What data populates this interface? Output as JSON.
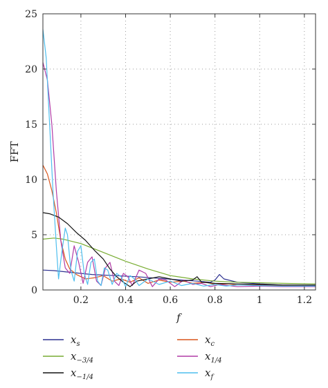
{
  "chart_data": {
    "type": "line",
    "title": "",
    "xlabel": "f",
    "ylabel": "FFT",
    "xlim": [
      0.03,
      1.25
    ],
    "ylim": [
      0,
      25
    ],
    "grid": true,
    "x_ticks": [
      0.2,
      0.4,
      0.6,
      0.8,
      1,
      1.2
    ],
    "x_tick_labels": [
      "0.2",
      "0.4",
      "0.6",
      "0.8",
      "1",
      "1.2"
    ],
    "y_ticks": [
      0,
      5,
      10,
      15,
      20,
      25
    ],
    "y_tick_labels": [
      "0",
      "5",
      "10",
      "15",
      "20",
      "25"
    ],
    "legend": {
      "placement": "bottom",
      "entries": [
        {
          "base": "x",
          "sub": "s",
          "color": "#2b2f8f"
        },
        {
          "base": "x",
          "sub": "c",
          "color": "#d9541a"
        },
        {
          "base": "x",
          "sub": "−3/4",
          "color": "#77ac30"
        },
        {
          "base": "x",
          "sub": "1/4",
          "color": "#b03aa6"
        },
        {
          "base": "x",
          "sub": "−1/4",
          "color": "#111111"
        },
        {
          "base": "x",
          "sub": "f",
          "color": "#4dbeee"
        }
      ]
    },
    "series": [
      {
        "key": "xs",
        "color": "#2b2f8f",
        "points": [
          [
            0.03,
            1.8
          ],
          [
            0.08,
            1.75
          ],
          [
            0.15,
            1.6
          ],
          [
            0.25,
            1.4
          ],
          [
            0.35,
            1.3
          ],
          [
            0.45,
            1.2
          ],
          [
            0.55,
            1.05
          ],
          [
            0.65,
            0.9
          ],
          [
            0.72,
            0.8
          ],
          [
            0.78,
            0.7
          ],
          [
            0.8,
            0.9
          ],
          [
            0.82,
            1.4
          ],
          [
            0.84,
            1.0
          ],
          [
            0.9,
            0.7
          ],
          [
            1.0,
            0.55
          ],
          [
            1.1,
            0.45
          ],
          [
            1.25,
            0.4
          ]
        ]
      },
      {
        "key": "xc",
        "color": "#d9541a",
        "points": [
          [
            0.03,
            11.3
          ],
          [
            0.05,
            10.5
          ],
          [
            0.07,
            9.0
          ],
          [
            0.09,
            7.0
          ],
          [
            0.11,
            4.5
          ],
          [
            0.13,
            2.8
          ],
          [
            0.15,
            1.9
          ],
          [
            0.18,
            1.4
          ],
          [
            0.22,
            1.0
          ],
          [
            0.26,
            1.1
          ],
          [
            0.3,
            1.3
          ],
          [
            0.34,
            0.8
          ],
          [
            0.38,
            1.0
          ],
          [
            0.42,
            0.7
          ],
          [
            0.46,
            1.1
          ],
          [
            0.5,
            0.6
          ],
          [
            0.55,
            0.9
          ],
          [
            0.6,
            0.7
          ],
          [
            0.66,
            0.8
          ],
          [
            0.7,
            0.6
          ],
          [
            0.76,
            0.7
          ],
          [
            0.8,
            0.5
          ],
          [
            0.86,
            0.55
          ],
          [
            0.9,
            0.45
          ],
          [
            1.0,
            0.45
          ],
          [
            1.1,
            0.4
          ],
          [
            1.25,
            0.35
          ]
        ]
      },
      {
        "key": "x_m34",
        "color": "#77ac30",
        "points": [
          [
            0.03,
            4.6
          ],
          [
            0.08,
            4.7
          ],
          [
            0.12,
            4.6
          ],
          [
            0.2,
            4.2
          ],
          [
            0.3,
            3.4
          ],
          [
            0.4,
            2.6
          ],
          [
            0.5,
            1.9
          ],
          [
            0.6,
            1.3
          ],
          [
            0.7,
            1.0
          ],
          [
            0.8,
            0.8
          ],
          [
            0.9,
            0.7
          ],
          [
            1.0,
            0.65
          ],
          [
            1.1,
            0.6
          ],
          [
            1.25,
            0.55
          ]
        ]
      },
      {
        "key": "x_14",
        "color": "#b03aa6",
        "points": [
          [
            0.03,
            20.6
          ],
          [
            0.05,
            19.0
          ],
          [
            0.07,
            15.0
          ],
          [
            0.09,
            9.0
          ],
          [
            0.11,
            4.5
          ],
          [
            0.13,
            2.0
          ],
          [
            0.15,
            1.5
          ],
          [
            0.17,
            4.0
          ],
          [
            0.19,
            2.5
          ],
          [
            0.21,
            0.6
          ],
          [
            0.23,
            2.5
          ],
          [
            0.25,
            3.0
          ],
          [
            0.27,
            0.8
          ],
          [
            0.29,
            0.4
          ],
          [
            0.31,
            2.0
          ],
          [
            0.33,
            2.5
          ],
          [
            0.35,
            0.8
          ],
          [
            0.37,
            0.4
          ],
          [
            0.39,
            1.5
          ],
          [
            0.41,
            1.2
          ],
          [
            0.43,
            0.4
          ],
          [
            0.46,
            1.8
          ],
          [
            0.49,
            1.5
          ],
          [
            0.52,
            0.3
          ],
          [
            0.55,
            1.0
          ],
          [
            0.58,
            0.9
          ],
          [
            0.62,
            0.3
          ],
          [
            0.66,
            0.9
          ],
          [
            0.7,
            0.5
          ],
          [
            0.74,
            0.6
          ],
          [
            0.78,
            0.3
          ],
          [
            0.82,
            0.5
          ],
          [
            0.86,
            0.4
          ],
          [
            0.9,
            0.3
          ],
          [
            1.0,
            0.35
          ],
          [
            1.1,
            0.3
          ],
          [
            1.25,
            0.3
          ]
        ]
      },
      {
        "key": "x_m14",
        "color": "#111111",
        "points": [
          [
            0.03,
            7.0
          ],
          [
            0.06,
            6.9
          ],
          [
            0.1,
            6.6
          ],
          [
            0.14,
            6.0
          ],
          [
            0.18,
            5.2
          ],
          [
            0.22,
            4.5
          ],
          [
            0.26,
            3.6
          ],
          [
            0.3,
            2.8
          ],
          [
            0.33,
            1.9
          ],
          [
            0.36,
            1.2
          ],
          [
            0.39,
            0.7
          ],
          [
            0.42,
            0.3
          ],
          [
            0.45,
            0.8
          ],
          [
            0.5,
            1.0
          ],
          [
            0.55,
            1.2
          ],
          [
            0.6,
            1.0
          ],
          [
            0.65,
            0.8
          ],
          [
            0.7,
            0.9
          ],
          [
            0.72,
            1.2
          ],
          [
            0.74,
            0.7
          ],
          [
            0.8,
            0.6
          ],
          [
            0.9,
            0.55
          ],
          [
            1.0,
            0.5
          ],
          [
            1.1,
            0.45
          ],
          [
            1.25,
            0.45
          ]
        ]
      },
      {
        "key": "xf",
        "color": "#4dbeee",
        "points": [
          [
            0.03,
            23.6
          ],
          [
            0.045,
            21.0
          ],
          [
            0.06,
            15.0
          ],
          [
            0.075,
            9.0
          ],
          [
            0.09,
            4.0
          ],
          [
            0.1,
            1.0
          ],
          [
            0.115,
            3.5
          ],
          [
            0.13,
            5.6
          ],
          [
            0.14,
            5.0
          ],
          [
            0.155,
            1.8
          ],
          [
            0.17,
            0.8
          ],
          [
            0.185,
            3.5
          ],
          [
            0.2,
            4.0
          ],
          [
            0.215,
            1.5
          ],
          [
            0.23,
            0.5
          ],
          [
            0.245,
            2.5
          ],
          [
            0.26,
            2.8
          ],
          [
            0.275,
            0.8
          ],
          [
            0.29,
            0.4
          ],
          [
            0.305,
            2.0
          ],
          [
            0.32,
            1.8
          ],
          [
            0.34,
            0.5
          ],
          [
            0.36,
            1.5
          ],
          [
            0.38,
            1.2
          ],
          [
            0.4,
            0.3
          ],
          [
            0.42,
            1.3
          ],
          [
            0.44,
            1.0
          ],
          [
            0.46,
            0.4
          ],
          [
            0.5,
            1.0
          ],
          [
            0.55,
            0.5
          ],
          [
            0.6,
            0.8
          ],
          [
            0.65,
            0.4
          ],
          [
            0.7,
            0.6
          ],
          [
            0.75,
            0.35
          ],
          [
            0.8,
            0.5
          ],
          [
            0.85,
            0.35
          ],
          [
            0.9,
            0.45
          ],
          [
            1.0,
            0.4
          ],
          [
            1.1,
            0.35
          ],
          [
            1.25,
            0.35
          ]
        ]
      }
    ]
  }
}
